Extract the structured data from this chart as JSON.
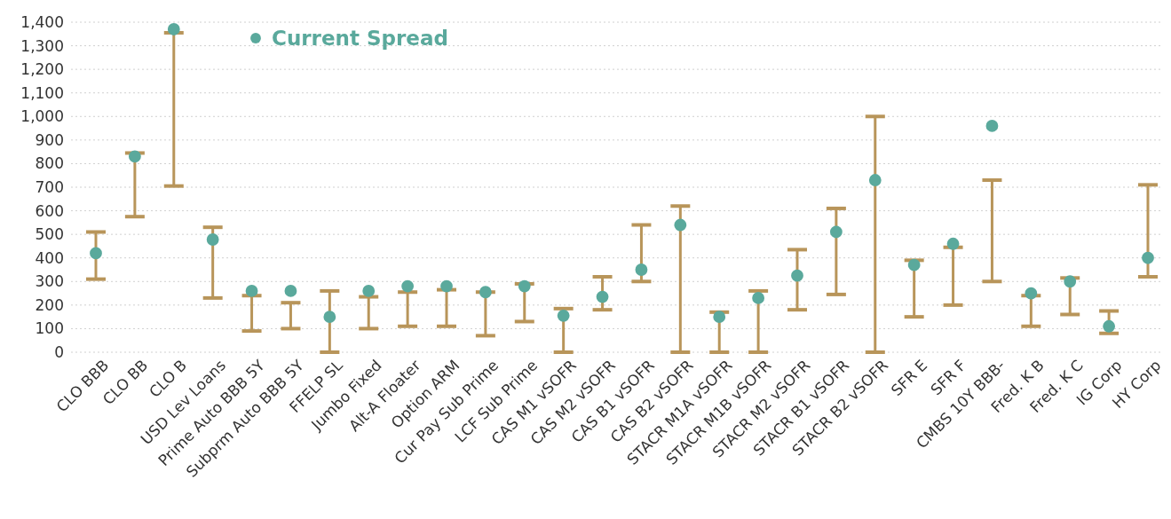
{
  "chart_data": {
    "type": "scatter",
    "categories": [
      "CLO BBB",
      "CLO BB",
      "CLO B",
      "USD Lev Loans",
      "Prime Auto BBB 5Y",
      "Subprm Auto BBB 5Y",
      "FFELP SL",
      "Jumbo Fixed",
      "Alt-A Floater",
      "Option ARM",
      "Cur Pay Sub Prime",
      "LCF Sub Prime",
      "CAS M1 vSOFR",
      "CAS M2 vSOFR",
      "CAS B1 vSOFR",
      "CAS B2 vSOFR",
      "STACR M1A vSOFR",
      "STACR M1B vSOFR",
      "STACR M2 vSOFR",
      "STACR B1 vSOFR",
      "STACR B2 vSOFR",
      "SFR E",
      "SFR F",
      "CMBS 10Y BBB-",
      "Fred. K B",
      "Fred. K C",
      "IG Corp",
      "HY Corp"
    ],
    "series": [
      {
        "name": "Current Spread",
        "color": "#5aa99c",
        "values": [
          420,
          830,
          1370,
          478,
          260,
          260,
          150,
          260,
          280,
          280,
          255,
          280,
          155,
          235,
          350,
          540,
          150,
          230,
          325,
          510,
          730,
          370,
          460,
          960,
          250,
          300,
          110,
          400
        ],
        "errors": [
          [
            310,
            510
          ],
          [
            575,
            845
          ],
          [
            705,
            1355
          ],
          [
            230,
            530
          ],
          [
            90,
            240
          ],
          [
            100,
            210
          ],
          [
            0,
            260
          ],
          [
            100,
            235
          ],
          [
            110,
            255
          ],
          [
            110,
            265
          ],
          [
            70,
            255
          ],
          [
            130,
            290
          ],
          [
            0,
            185
          ],
          [
            180,
            320
          ],
          [
            300,
            540
          ],
          [
            0,
            620
          ],
          [
            0,
            170
          ],
          [
            0,
            260
          ],
          [
            180,
            435
          ],
          [
            245,
            610
          ],
          [
            0,
            1000
          ],
          [
            150,
            390
          ],
          [
            200,
            445
          ],
          [
            300,
            730
          ],
          [
            110,
            240
          ],
          [
            160,
            315
          ],
          [
            80,
            175
          ],
          [
            320,
            710
          ]
        ]
      }
    ],
    "ylim": [
      0,
      1400
    ],
    "yticks": [
      {
        "value": 0,
        "label": "0"
      },
      {
        "value": 100,
        "label": "100"
      },
      {
        "value": 200,
        "label": "200"
      },
      {
        "value": 300,
        "label": "300"
      },
      {
        "value": 400,
        "label": "400"
      },
      {
        "value": 500,
        "label": "500"
      },
      {
        "value": 600,
        "label": "600"
      },
      {
        "value": 700,
        "label": "700"
      },
      {
        "value": 800,
        "label": "800"
      },
      {
        "value": 900,
        "label": "900"
      },
      {
        "value": 1000,
        "label": "1,000"
      },
      {
        "value": 1100,
        "label": "1,100"
      },
      {
        "value": 1200,
        "label": "1,200"
      },
      {
        "value": 1300,
        "label": "1,300"
      },
      {
        "value": 1400,
        "label": "1,400"
      }
    ],
    "grid": "y",
    "legend": "top left",
    "marker": "circle"
  }
}
